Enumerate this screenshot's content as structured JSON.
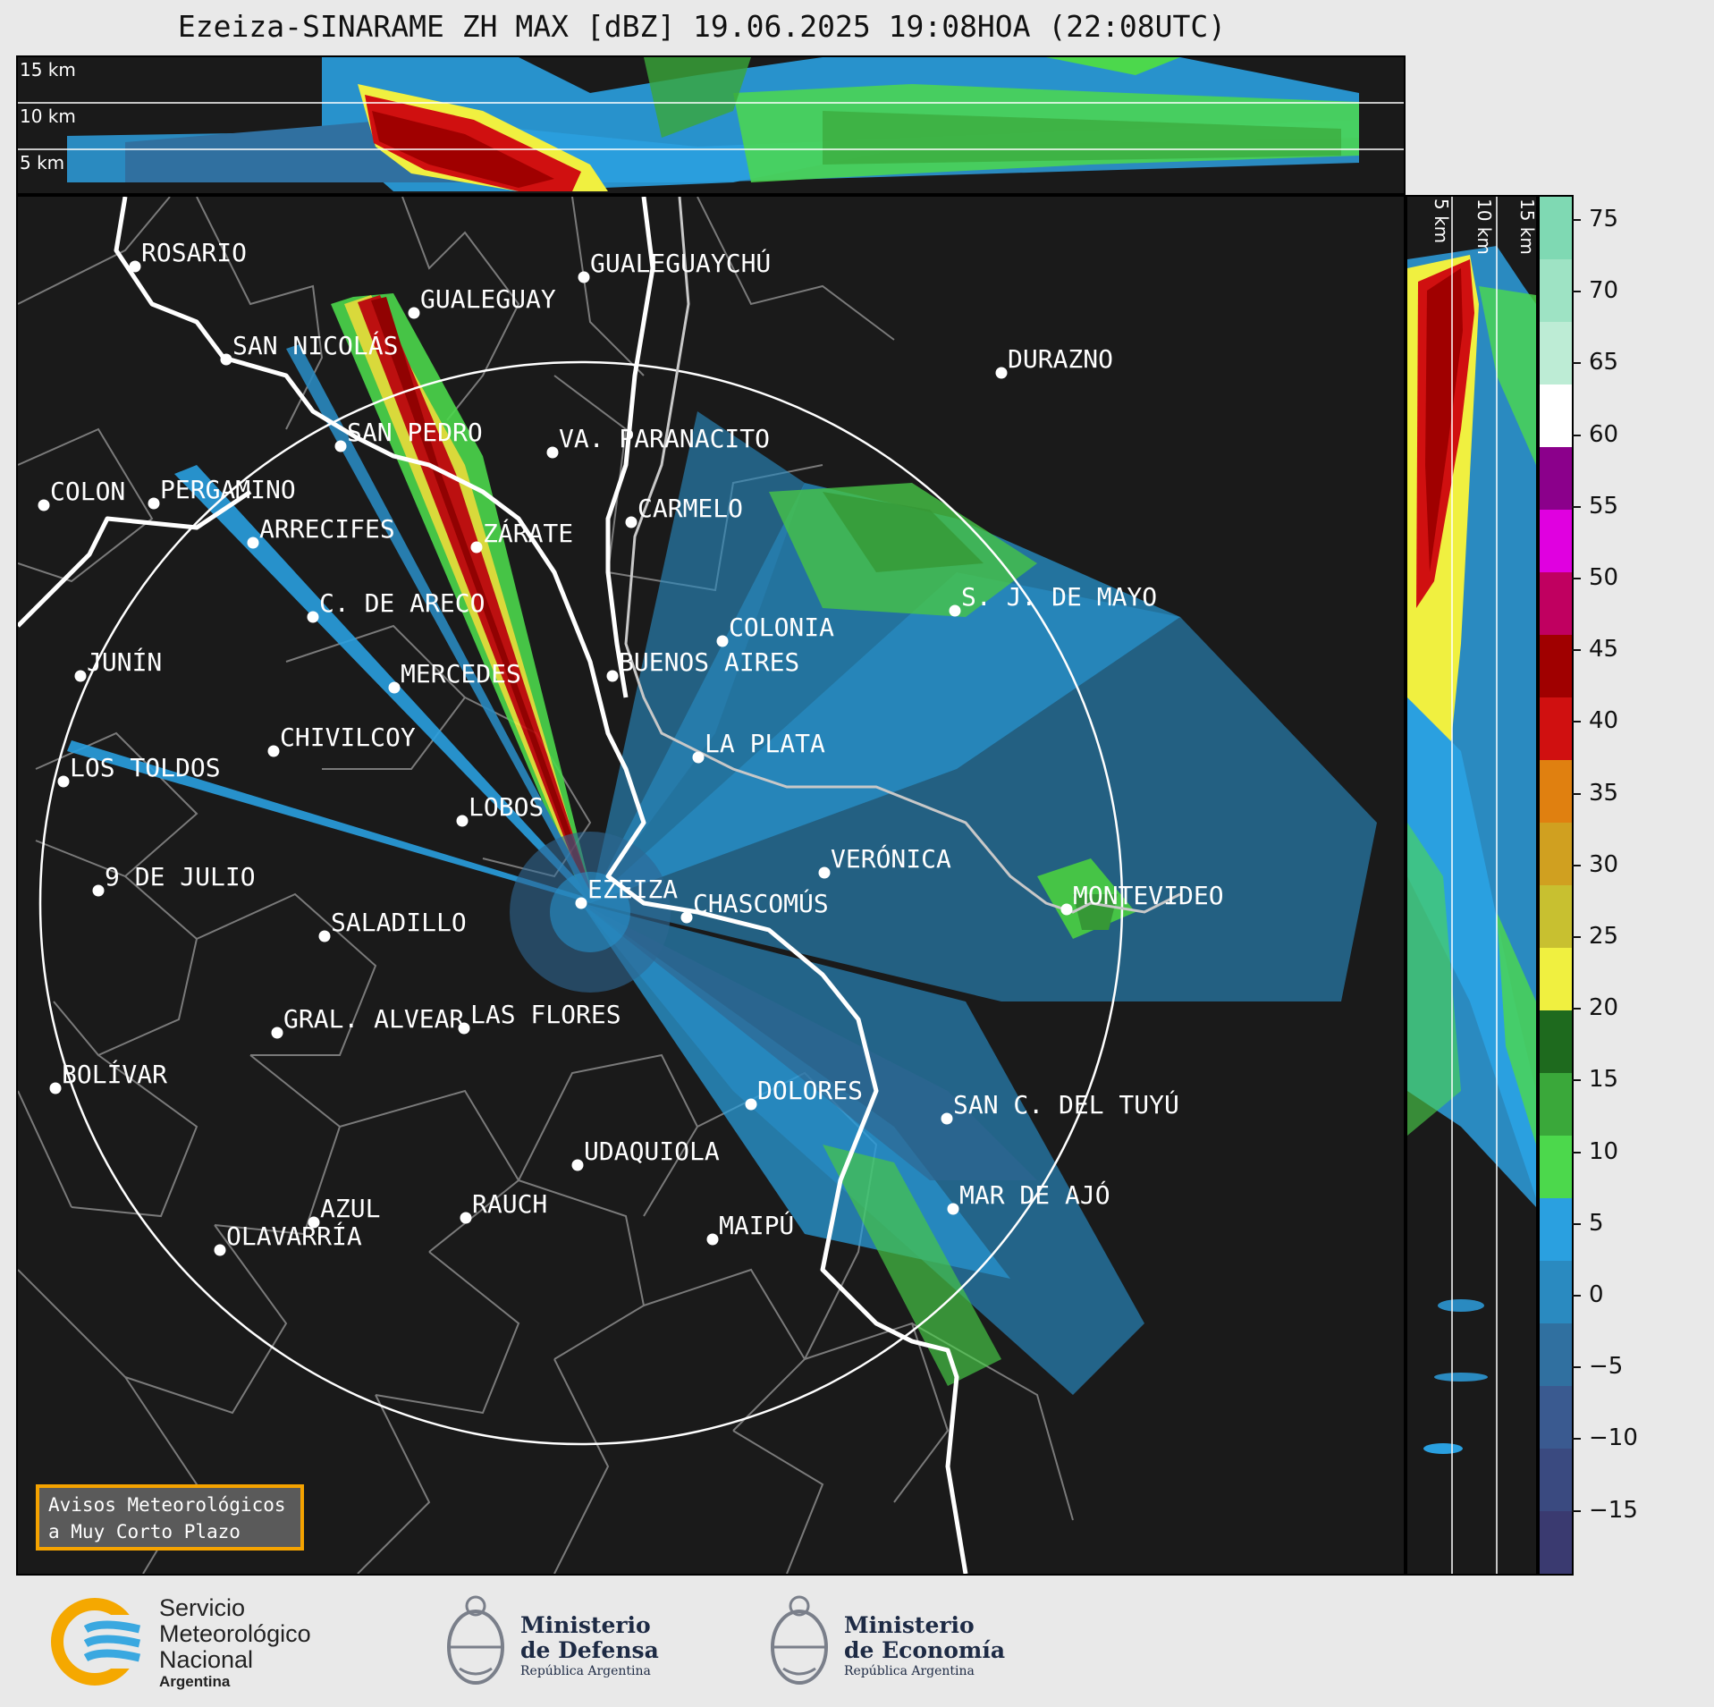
{
  "title": "Ezeiza-SINARAME ZH MAX [dBZ] 19.06.2025 19:08HOA (22:08UTC)",
  "top_altitudes": [
    "15 km",
    "10 km",
    "5 km"
  ],
  "side_altitudes": [
    "5 km",
    "10 km",
    "15 km"
  ],
  "colorbar": {
    "ticks": [
      "75",
      "70",
      "65",
      "60",
      "55",
      "50",
      "45",
      "40",
      "35",
      "30",
      "25",
      "20",
      "15",
      "10",
      "5",
      "0",
      "−5",
      "−10",
      "−15"
    ],
    "colors": [
      "#7fd9b3",
      "#9ee3c4",
      "#bdecd5",
      "#ffffff",
      "#8b008b",
      "#e000e0",
      "#c00060",
      "#a00000",
      "#d01010",
      "#e08010",
      "#d0a020",
      "#c8c030",
      "#f0f040",
      "#1e6a1e",
      "#3aa83a",
      "#4cd84c",
      "#2aa0e0",
      "#2a8ac0",
      "#3070a0",
      "#3a5a90",
      "#3a4a80",
      "#3a3a70"
    ]
  },
  "cities": [
    {
      "name": "ROSARIO"
    },
    {
      "name": "GUALEGUAYCHÚ"
    },
    {
      "name": "GUALEGUAY"
    },
    {
      "name": "SAN NICOLÁS"
    },
    {
      "name": "DURAZNO"
    },
    {
      "name": "SAN PEDRO"
    },
    {
      "name": "VA. PARANACITO"
    },
    {
      "name": "COLON"
    },
    {
      "name": "PERGAMINO"
    },
    {
      "name": "CARMELO"
    },
    {
      "name": "ARRECIFES"
    },
    {
      "name": "ZÁRATE"
    },
    {
      "name": "S. J. DE MAYO"
    },
    {
      "name": "C. DE ARECO"
    },
    {
      "name": "COLONIA"
    },
    {
      "name": "JUNÍN"
    },
    {
      "name": "BUENOS AIRES"
    },
    {
      "name": "MERCEDES"
    },
    {
      "name": "MONTEVIDEO"
    },
    {
      "name": "EZEIZA"
    },
    {
      "name": "CHIVILCOY"
    },
    {
      "name": "LA PLATA"
    },
    {
      "name": "LOS TOLDOS"
    },
    {
      "name": "LOBOS"
    },
    {
      "name": "VERÓNICA"
    },
    {
      "name": "9 DE JULIO"
    },
    {
      "name": "CHASCOMÚS"
    },
    {
      "name": "SALADILLO"
    },
    {
      "name": "GRAL. ALVEAR"
    },
    {
      "name": "LAS FLORES"
    },
    {
      "name": "BOLÍVAR"
    },
    {
      "name": "DOLORES"
    },
    {
      "name": "SAN C. DEL TUYÚ"
    },
    {
      "name": "UDAQUIOLA"
    },
    {
      "name": "MAR DE AJÓ"
    },
    {
      "name": "AZUL"
    },
    {
      "name": "RAUCH"
    },
    {
      "name": "OLAVARRÍA"
    },
    {
      "name": "MAIPÚ"
    }
  ],
  "avisos": {
    "line1": "Avisos Meteorológicos",
    "line2": "a Muy Corto Plazo"
  },
  "logos": {
    "smn": {
      "line1": "Servicio",
      "line2": "Meteorológico",
      "line3": "Nacional",
      "line4": "Argentina"
    },
    "defensa": {
      "line1": "Ministerio",
      "line2": "de Defensa",
      "line3": "República Argentina"
    },
    "economia": {
      "line1": "Ministerio",
      "line2": "de Economía",
      "line3": "República Argentina"
    }
  }
}
